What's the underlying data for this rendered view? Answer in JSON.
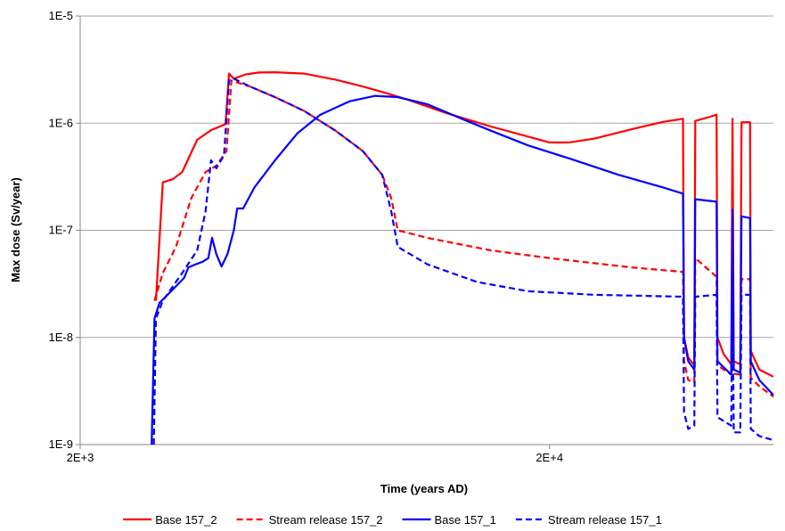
{
  "chart_data": {
    "type": "line",
    "title": "",
    "xlabel": "Time (years AD)",
    "ylabel": "Max dose  (Sv/year)",
    "x_scale": "log",
    "y_scale": "log",
    "xlim": [
      2000,
      60000
    ],
    "ylim": [
      1e-09,
      1e-05
    ],
    "x_ticks": [
      {
        "value": 2000,
        "label": "2E+3"
      },
      {
        "value": 20000,
        "label": "2E+4"
      }
    ],
    "y_ticks": [
      {
        "value": 1e-09,
        "label": "1E-9"
      },
      {
        "value": 1e-08,
        "label": "1E-8"
      },
      {
        "value": 1e-07,
        "label": "1E-7"
      },
      {
        "value": 1e-06,
        "label": "1E-6"
      },
      {
        "value": 1e-05,
        "label": "1E-5"
      }
    ],
    "grid": {
      "horizontal": true,
      "vertical": false
    },
    "legend_position": "bottom",
    "series": [
      {
        "name": "Base 157_2",
        "color": "#ff0000",
        "dash": "solid",
        "points": [
          [
            2900,
            2.2e-08
          ],
          [
            3000,
            2.8e-07
          ],
          [
            3150,
            3e-07
          ],
          [
            3300,
            3.5e-07
          ],
          [
            3550,
            7e-07
          ],
          [
            3800,
            8.6e-07
          ],
          [
            4080,
            9.8e-07
          ],
          [
            4150,
            2.9e-06
          ],
          [
            4250,
            2.6e-06
          ],
          [
            4500,
            2.85e-06
          ],
          [
            4800,
            2.97e-06
          ],
          [
            5200,
            2.99e-06
          ],
          [
            6000,
            2.9e-06
          ],
          [
            7000,
            2.55e-06
          ],
          [
            8000,
            2.2e-06
          ],
          [
            9000,
            1.9e-06
          ],
          [
            10000,
            1.65e-06
          ],
          [
            12000,
            1.25e-06
          ],
          [
            15000,
            9.3e-07
          ],
          [
            18000,
            7.5e-07
          ],
          [
            20000,
            6.6e-07
          ],
          [
            22000,
            6.6e-07
          ],
          [
            25000,
            7.2e-07
          ],
          [
            30000,
            8.8e-07
          ],
          [
            35000,
            1.03e-06
          ],
          [
            38500,
            1.1e-06
          ],
          [
            38700,
            1e-08
          ],
          [
            39500,
            6.5e-09
          ],
          [
            40700,
            5.5e-09
          ],
          [
            40900,
            1.05e-06
          ],
          [
            44000,
            1.15e-06
          ],
          [
            45400,
            1.2e-06
          ],
          [
            45600,
            1e-08
          ],
          [
            47000,
            7e-09
          ],
          [
            48800,
            5.6e-09
          ],
          [
            49100,
            1.1e-06
          ],
          [
            49400,
            6e-09
          ],
          [
            51000,
            5.6e-09
          ],
          [
            51300,
            1.02e-06
          ],
          [
            53500,
            1.02e-06
          ],
          [
            53700,
            7.5e-09
          ],
          [
            56000,
            5e-09
          ],
          [
            60000,
            4.3e-09
          ]
        ]
      },
      {
        "name": "Stream release 157_2",
        "color": "#ff0000",
        "dash": "dashed",
        "points": [
          [
            2880,
            2.2e-08
          ],
          [
            3000,
            4e-08
          ],
          [
            3200,
            7e-08
          ],
          [
            3450,
            2e-07
          ],
          [
            3700,
            3.5e-07
          ],
          [
            3900,
            4e-07
          ],
          [
            4100,
            5.5e-07
          ],
          [
            4200,
            2.5e-06
          ],
          [
            4600,
            2.2e-06
          ],
          [
            5200,
            1.75e-06
          ],
          [
            6000,
            1.3e-06
          ],
          [
            7000,
            8.5e-07
          ],
          [
            8000,
            5.5e-07
          ],
          [
            8800,
            3.3e-07
          ],
          [
            9200,
            2e-07
          ],
          [
            9500,
            1e-07
          ],
          [
            11000,
            8.5e-08
          ],
          [
            15000,
            6.5e-08
          ],
          [
            20000,
            5.5e-08
          ],
          [
            30000,
            4.5e-08
          ],
          [
            38500,
            4.1e-08
          ],
          [
            38700,
            6e-09
          ],
          [
            39500,
            4e-09
          ],
          [
            40700,
            3.8e-09
          ],
          [
            40900,
            5.5e-08
          ],
          [
            45000,
            3.8e-08
          ],
          [
            45400,
            3.7e-08
          ],
          [
            45600,
            5.5e-09
          ],
          [
            48800,
            4.5e-09
          ],
          [
            49100,
            3.6e-08
          ],
          [
            49400,
            4.6e-09
          ],
          [
            51000,
            4.5e-09
          ],
          [
            51300,
            3.5e-08
          ],
          [
            53500,
            3.5e-08
          ],
          [
            53700,
            4.2e-09
          ],
          [
            56000,
            3.5e-09
          ],
          [
            60000,
            2.8e-09
          ]
        ]
      },
      {
        "name": "Base 157_1",
        "color": "#0000ff",
        "dash": "solid",
        "points": [
          [
            2840,
            1e-09
          ],
          [
            2880,
            1.5e-08
          ],
          [
            2950,
            2.1e-08
          ],
          [
            3150,
            2.8e-08
          ],
          [
            3330,
            3.6e-08
          ],
          [
            3400,
            4.5e-08
          ],
          [
            3520,
            4.8e-08
          ],
          [
            3650,
            5.1e-08
          ],
          [
            3750,
            5.5e-08
          ],
          [
            3820,
            8.5e-08
          ],
          [
            3900,
            6e-08
          ],
          [
            4000,
            4.6e-08
          ],
          [
            4120,
            6e-08
          ],
          [
            4250,
            1e-07
          ],
          [
            4320,
            1.6e-07
          ],
          [
            4450,
            1.6e-07
          ],
          [
            4700,
            2.5e-07
          ],
          [
            5200,
            4.5e-07
          ],
          [
            5800,
            8e-07
          ],
          [
            6500,
            1.2e-06
          ],
          [
            7500,
            1.6e-06
          ],
          [
            8500,
            1.8e-06
          ],
          [
            9500,
            1.75e-06
          ],
          [
            11000,
            1.5e-06
          ],
          [
            13000,
            1.1e-06
          ],
          [
            15000,
            8.5e-07
          ],
          [
            18000,
            6.2e-07
          ],
          [
            22000,
            4.7e-07
          ],
          [
            28000,
            3.3e-07
          ],
          [
            35000,
            2.5e-07
          ],
          [
            38500,
            2.2e-07
          ],
          [
            38700,
            1e-08
          ],
          [
            39500,
            6e-09
          ],
          [
            40700,
            5e-09
          ],
          [
            40900,
            1.95e-07
          ],
          [
            45400,
            1.85e-07
          ],
          [
            45600,
            6e-09
          ],
          [
            48800,
            4.5e-09
          ],
          [
            49100,
            1.55e-07
          ],
          [
            49400,
            5e-09
          ],
          [
            51000,
            4.7e-09
          ],
          [
            51300,
            1.35e-07
          ],
          [
            53500,
            1.3e-07
          ],
          [
            53700,
            6e-09
          ],
          [
            56000,
            4e-09
          ],
          [
            60000,
            2.9e-09
          ]
        ]
      },
      {
        "name": "Stream release 157_1",
        "color": "#0000ff",
        "dash": "dashed",
        "points": [
          [
            2870,
            1e-09
          ],
          [
            2900,
            1.5e-08
          ],
          [
            3000,
            2.2e-08
          ],
          [
            3300,
            4e-08
          ],
          [
            3550,
            6.5e-08
          ],
          [
            3700,
            1.5e-07
          ],
          [
            3800,
            4.5e-07
          ],
          [
            3900,
            3.8e-07
          ],
          [
            4050,
            5e-07
          ],
          [
            4150,
            2.5e-06
          ],
          [
            4250,
            2.6e-06
          ],
          [
            4600,
            2.2e-06
          ],
          [
            5200,
            1.75e-06
          ],
          [
            6000,
            1.3e-06
          ],
          [
            7000,
            8.5e-07
          ],
          [
            8000,
            5.5e-07
          ],
          [
            8800,
            3.3e-07
          ],
          [
            9200,
            1.5e-07
          ],
          [
            9500,
            7e-08
          ],
          [
            11000,
            4.8e-08
          ],
          [
            14000,
            3.3e-08
          ],
          [
            18000,
            2.7e-08
          ],
          [
            25000,
            2.5e-08
          ],
          [
            38500,
            2.4e-08
          ],
          [
            38700,
            2e-09
          ],
          [
            39500,
            1.4e-09
          ],
          [
            40700,
            1.5e-09
          ],
          [
            40900,
            2.4e-08
          ],
          [
            45400,
            2.5e-08
          ],
          [
            45600,
            1.8e-09
          ],
          [
            48800,
            1.5e-09
          ],
          [
            49100,
            2.5e-08
          ],
          [
            49400,
            1.3e-09
          ],
          [
            51000,
            1.3e-09
          ],
          [
            51300,
            2.5e-08
          ],
          [
            53500,
            2.5e-08
          ],
          [
            53700,
            1.4e-09
          ],
          [
            56000,
            1.2e-09
          ],
          [
            60000,
            1.1e-09
          ]
        ]
      }
    ]
  }
}
